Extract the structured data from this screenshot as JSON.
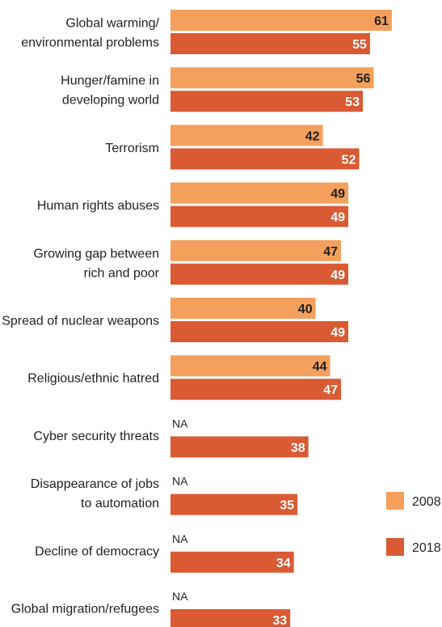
{
  "chart_data": {
    "type": "bar",
    "orientation": "horizontal",
    "title": "",
    "xlabel": "",
    "ylabel": "",
    "grid": false,
    "legend_position": "right",
    "categories": [
      [
        "Global warming/",
        "environmental problems"
      ],
      [
        "Hunger/famine in",
        "developing world"
      ],
      [
        "Terrorism"
      ],
      [
        "Human rights abuses"
      ],
      [
        "Growing gap between",
        "rich and poor"
      ],
      [
        "Spread of nuclear weapons"
      ],
      [
        "Religious/ethnic hatred"
      ],
      [
        "Cyber security threats"
      ],
      [
        "Disappearance of jobs",
        "to automation"
      ],
      [
        "Decline of democracy"
      ],
      [
        "Global migration/refugees"
      ]
    ],
    "series": [
      {
        "name": "2008",
        "color": "#f4a05c",
        "label_color": "#231f20",
        "values": [
          61,
          56,
          42,
          49,
          47,
          40,
          44,
          null,
          null,
          null,
          null
        ]
      },
      {
        "name": "2018",
        "color": "#d95a33",
        "label_color": "#ffffff",
        "values": [
          55,
          53,
          52,
          49,
          49,
          49,
          47,
          38,
          35,
          34,
          33
        ]
      }
    ],
    "missing_label": "NA"
  }
}
